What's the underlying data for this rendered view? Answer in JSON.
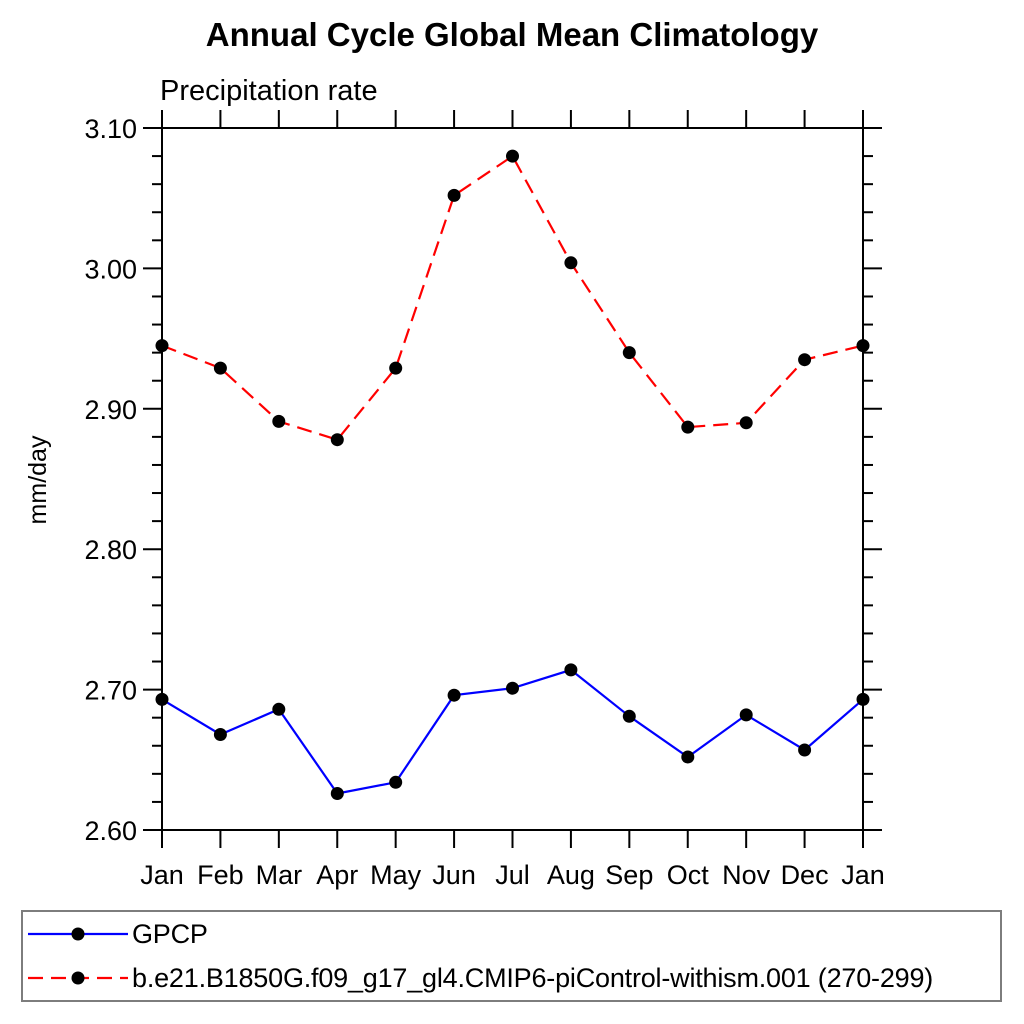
{
  "chart_data": {
    "type": "line",
    "title": "Annual Cycle Global Mean Climatology",
    "subtitle": "Precipitation rate",
    "ylabel": "mm/day",
    "xlabel": "",
    "categories": [
      "Jan",
      "Feb",
      "Mar",
      "Apr",
      "May",
      "Jun",
      "Jul",
      "Aug",
      "Sep",
      "Oct",
      "Nov",
      "Dec",
      "Jan"
    ],
    "ylim": [
      2.6,
      3.1
    ],
    "ytick_major_values": [
      3.1,
      3.0,
      2.9,
      2.8,
      2.7,
      2.6
    ],
    "ytick_labels": [
      "3.10",
      "3.00",
      "2.90",
      "2.80",
      "2.70",
      "2.60"
    ],
    "ytick_minor_step": 0.02,
    "grid": false,
    "legend_position": "bottom-left-box",
    "series": [
      {
        "name": "GPCP",
        "color": "#0000ff",
        "line_style": "solid",
        "marker": "circle",
        "marker_color": "#000000",
        "values": [
          2.693,
          2.668,
          2.686,
          2.626,
          2.634,
          2.696,
          2.701,
          2.714,
          2.681,
          2.652,
          2.682,
          2.657,
          2.693
        ]
      },
      {
        "name": "b.e21.B1850G.f09_g17_gl4.CMIP6-piControl-withism.001 (270-299)",
        "color": "#ff0000",
        "line_style": "dashed",
        "marker": "circle",
        "marker_color": "#000000",
        "values": [
          2.945,
          2.929,
          2.891,
          2.878,
          2.929,
          3.052,
          3.08,
          3.004,
          2.94,
          2.887,
          2.89,
          2.935,
          2.945
        ]
      }
    ]
  }
}
